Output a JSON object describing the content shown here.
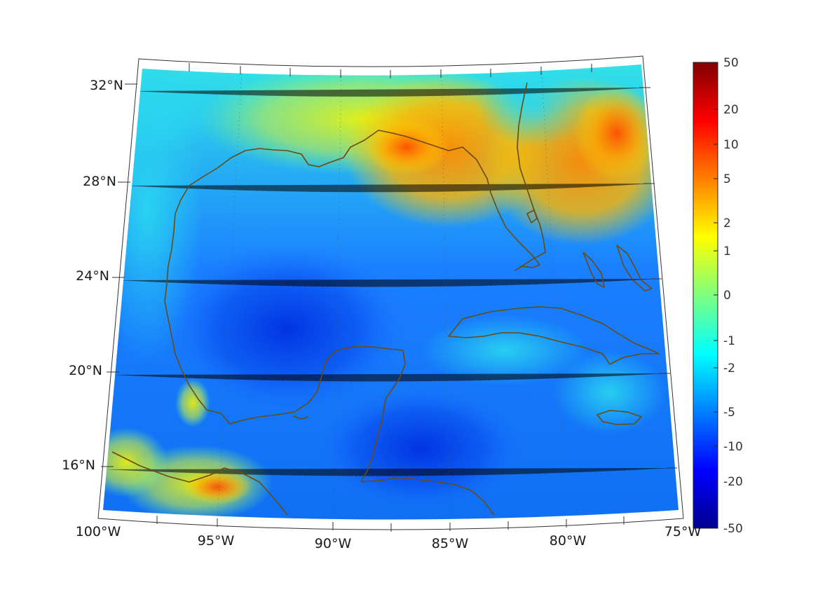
{
  "map": {
    "projection": "conic",
    "longitude_range": [
      -100,
      -75
    ],
    "latitude_range": [
      14,
      33
    ],
    "lon_ticks": [
      {
        "value": -100,
        "label": "100°W"
      },
      {
        "value": -95,
        "label": "95°W"
      },
      {
        "value": -90,
        "label": "90°W"
      },
      {
        "value": -85,
        "label": "85°W"
      },
      {
        "value": -80,
        "label": "80°W"
      },
      {
        "value": -75,
        "label": "75°W"
      }
    ],
    "lat_ticks": [
      {
        "value": 32,
        "label": "32°N"
      },
      {
        "value": 28,
        "label": "28°N"
      },
      {
        "value": 24,
        "label": "24°N"
      },
      {
        "value": 20,
        "label": "20°N"
      },
      {
        "value": 16,
        "label": "16°N"
      }
    ],
    "colormap": "jet",
    "coastline_color": "#6b4a12",
    "colorbar": {
      "ticks": [
        "50",
        "20",
        "10",
        "5",
        "2",
        "1",
        "0",
        "-1",
        "-2",
        "-5",
        "-10",
        "-20",
        "-50"
      ],
      "range": [
        -50,
        50
      ]
    }
  }
}
